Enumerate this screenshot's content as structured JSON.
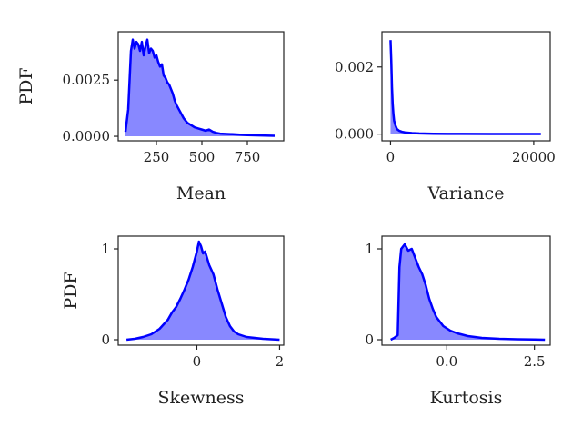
{
  "chart_data": [
    {
      "type": "area",
      "xlabel": "Mean",
      "ylabel": "PDF",
      "xlim": [
        40,
        950
      ],
      "ylim": [
        -0.0002,
        0.00465
      ],
      "xticks": [
        250,
        500,
        750
      ],
      "xtick_labels": [
        "250",
        "500",
        "750"
      ],
      "yticks": [
        0.0,
        0.0025
      ],
      "ytick_labels": [
        "0.0000",
        "0.0025"
      ],
      "grid": false,
      "color": "#0000ff",
      "fill_color": "#8888ff",
      "x": [
        80,
        95,
        110,
        120,
        130,
        140,
        150,
        160,
        170,
        180,
        190,
        200,
        210,
        220,
        230,
        240,
        250,
        260,
        270,
        280,
        290,
        300,
        310,
        320,
        330,
        340,
        350,
        360,
        380,
        400,
        420,
        440,
        460,
        480,
        500,
        520,
        540,
        560,
        580,
        600,
        650,
        700,
        750,
        800,
        850,
        900
      ],
      "y": [
        0.0002,
        0.0012,
        0.0038,
        0.0043,
        0.0039,
        0.0042,
        0.0041,
        0.0038,
        0.0042,
        0.0036,
        0.004,
        0.0043,
        0.0037,
        0.0039,
        0.0038,
        0.0035,
        0.0036,
        0.0033,
        0.0031,
        0.0032,
        0.0027,
        0.0026,
        0.0024,
        0.0023,
        0.0021,
        0.0019,
        0.0016,
        0.0014,
        0.0011,
        0.0008,
        0.0006,
        0.0005,
        0.0004,
        0.00035,
        0.0003,
        0.00025,
        0.0003,
        0.0002,
        0.00015,
        0.00012,
        0.0001,
        8e-05,
        5e-05,
        4e-05,
        3e-05,
        2e-05
      ]
    },
    {
      "type": "area",
      "xlabel": "Variance",
      "ylabel": "",
      "xlim": [
        -1200,
        22300
      ],
      "ylim": [
        -0.0002,
        0.00305
      ],
      "xticks": [
        0,
        20000
      ],
      "xtick_labels": [
        "0",
        "20000"
      ],
      "yticks": [
        0.0,
        0.002
      ],
      "ytick_labels": [
        "0.000",
        "0.002"
      ],
      "grid": false,
      "color": "#0000ff",
      "fill_color": "#8888ff",
      "x": [
        0,
        100,
        200,
        300,
        400,
        500,
        700,
        900,
        1200,
        1600,
        2000,
        3000,
        4000,
        6000,
        8000,
        10000,
        14000,
        18000,
        21000
      ],
      "y": [
        0.0028,
        0.0022,
        0.0014,
        0.0009,
        0.0006,
        0.0004,
        0.00025,
        0.00015,
        0.0001,
        7e-05,
        5e-05,
        3e-05,
        2e-05,
        1e-05,
        8e-06,
        6e-06,
        4e-06,
        3e-06,
        2e-06
      ]
    },
    {
      "type": "area",
      "xlabel": "Skewness",
      "ylabel": "PDF",
      "xlim": [
        -1.9,
        2.1
      ],
      "ylim": [
        -0.06,
        1.14
      ],
      "xticks": [
        0,
        2
      ],
      "xtick_labels": [
        "0",
        "2"
      ],
      "yticks": [
        0,
        1
      ],
      "ytick_labels": [
        "0",
        "1"
      ],
      "grid": false,
      "color": "#0000ff",
      "fill_color": "#8888ff",
      "x": [
        -1.7,
        -1.5,
        -1.3,
        -1.1,
        -0.9,
        -0.8,
        -0.7,
        -0.6,
        -0.5,
        -0.4,
        -0.3,
        -0.2,
        -0.1,
        0.0,
        0.05,
        0.1,
        0.15,
        0.2,
        0.3,
        0.4,
        0.5,
        0.6,
        0.7,
        0.8,
        0.9,
        1.0,
        1.2,
        1.4,
        1.6,
        1.8,
        2.0
      ],
      "y": [
        0.0,
        0.01,
        0.03,
        0.06,
        0.12,
        0.17,
        0.22,
        0.3,
        0.36,
        0.45,
        0.55,
        0.66,
        0.8,
        0.97,
        1.08,
        1.03,
        0.95,
        0.97,
        0.82,
        0.72,
        0.55,
        0.4,
        0.25,
        0.15,
        0.09,
        0.06,
        0.03,
        0.02,
        0.01,
        0.005,
        0.0
      ]
    },
    {
      "type": "area",
      "xlabel": "Kurtosis",
      "ylabel": "",
      "xlim": [
        -1.85,
        2.95
      ],
      "ylim": [
        -0.06,
        1.14
      ],
      "xticks": [
        0.0,
        2.5
      ],
      "xtick_labels": [
        "0.0",
        "2.5"
      ],
      "yticks": [
        0,
        1
      ],
      "ytick_labels": [
        "0",
        "1"
      ],
      "grid": false,
      "color": "#0000ff",
      "fill_color": "#8888ff",
      "x": [
        -1.6,
        -1.5,
        -1.4,
        -1.35,
        -1.3,
        -1.2,
        -1.1,
        -1.0,
        -0.9,
        -0.8,
        -0.7,
        -0.6,
        -0.5,
        -0.4,
        -0.3,
        -0.1,
        0.1,
        0.3,
        0.6,
        1.0,
        1.5,
        2.0,
        2.5,
        2.8
      ],
      "y": [
        0.0,
        0.02,
        0.05,
        0.8,
        1.0,
        1.05,
        0.98,
        1.0,
        0.9,
        0.8,
        0.72,
        0.6,
        0.45,
        0.34,
        0.25,
        0.15,
        0.1,
        0.07,
        0.04,
        0.02,
        0.01,
        0.005,
        0.003,
        0.0
      ]
    }
  ]
}
